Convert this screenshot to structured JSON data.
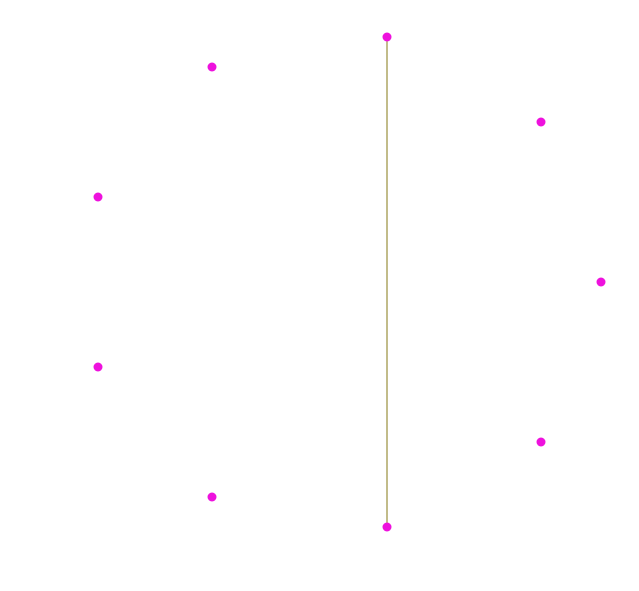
{
  "diagram": {
    "point_color": "#ee11dd",
    "edge_color": "#9a8f3c",
    "points": [
      {
        "id": "p0",
        "label": ""
      },
      {
        "id": "p1",
        "label": ""
      },
      {
        "id": "p2",
        "label": ""
      },
      {
        "id": "p3",
        "label": ""
      },
      {
        "id": "p4",
        "label": ""
      },
      {
        "id": "p5",
        "label": ""
      },
      {
        "id": "p6",
        "label": ""
      },
      {
        "id": "p7",
        "label": ""
      },
      {
        "id": "p8",
        "label": ""
      },
      {
        "id": "p9",
        "label": ""
      }
    ],
    "edges": [
      {
        "from": "p0",
        "to": "p5"
      }
    ]
  }
}
